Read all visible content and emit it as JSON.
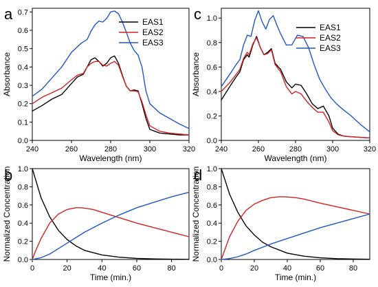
{
  "chart_data": [
    {
      "panel": "a",
      "type": "line",
      "xlabel": "Wavelength (nm)",
      "ylabel": "Absorbance",
      "xlim": [
        240,
        320
      ],
      "ylim": [
        0,
        0.72
      ],
      "xticks": [
        240,
        260,
        280,
        300,
        320
      ],
      "yticks": [
        0.0,
        0.1,
        0.2,
        0.3,
        0.4,
        0.5,
        0.6,
        0.7
      ],
      "ytick_labels": [
        "0.0",
        "0.1",
        "0.2",
        "0.3",
        "0.4",
        "0.5",
        "0.6",
        "0.7"
      ],
      "grid": false,
      "legend_position": "top-right",
      "series": [
        {
          "name": "EAS1",
          "color": "#000000",
          "x": [
            240,
            245,
            250,
            255,
            260,
            263,
            266,
            268,
            270,
            272,
            274,
            276,
            278,
            280,
            282,
            284,
            286,
            288,
            290,
            292,
            294,
            296,
            298,
            300,
            305,
            310,
            315,
            320
          ],
          "y": [
            0.16,
            0.19,
            0.225,
            0.25,
            0.31,
            0.345,
            0.36,
            0.4,
            0.44,
            0.45,
            0.43,
            0.405,
            0.42,
            0.45,
            0.46,
            0.42,
            0.355,
            0.295,
            0.27,
            0.275,
            0.27,
            0.2,
            0.12,
            0.06,
            0.04,
            0.035,
            0.03,
            0.03
          ]
        },
        {
          "name": "EAS2",
          "color": "#d42020",
          "x": [
            240,
            245,
            250,
            255,
            260,
            263,
            266,
            268,
            270,
            272,
            274,
            276,
            278,
            280,
            282,
            284,
            286,
            288,
            290,
            292,
            294,
            296,
            298,
            300,
            305,
            310,
            315,
            320
          ],
          "y": [
            0.2,
            0.235,
            0.26,
            0.285,
            0.33,
            0.355,
            0.365,
            0.4,
            0.42,
            0.43,
            0.43,
            0.41,
            0.405,
            0.42,
            0.43,
            0.41,
            0.35,
            0.295,
            0.27,
            0.27,
            0.265,
            0.21,
            0.14,
            0.08,
            0.05,
            0.04,
            0.035,
            0.03
          ]
        },
        {
          "name": "EAS3",
          "color": "#1f55c8",
          "x": [
            240,
            245,
            250,
            255,
            260,
            265,
            268,
            270,
            272,
            274,
            276,
            278,
            280,
            282,
            284,
            286,
            288,
            290,
            292,
            294,
            296,
            298,
            300,
            305,
            310,
            315,
            320
          ],
          "y": [
            0.24,
            0.28,
            0.34,
            0.4,
            0.48,
            0.53,
            0.55,
            0.595,
            0.63,
            0.65,
            0.645,
            0.665,
            0.7,
            0.705,
            0.69,
            0.645,
            0.59,
            0.53,
            0.49,
            0.465,
            0.4,
            0.27,
            0.2,
            0.15,
            0.12,
            0.09,
            0.065
          ]
        }
      ]
    },
    {
      "panel": "b",
      "type": "line",
      "xlabel": "Time (min.)",
      "ylabel": "Normalized Concentration",
      "xlim": [
        0,
        90
      ],
      "ylim": [
        0,
        1.0
      ],
      "xticks": [
        0,
        20,
        40,
        60,
        80
      ],
      "yticks": [
        0.0,
        0.2,
        0.4,
        0.6,
        0.8,
        1.0
      ],
      "ytick_labels": [
        "0.0",
        "0.2",
        "0.4",
        "0.6",
        "0.8",
        "1.0"
      ],
      "grid": false,
      "series": [
        {
          "color": "#000000",
          "x": [
            0,
            5,
            10,
            15,
            20,
            25,
            30,
            40,
            50,
            60,
            70,
            80,
            90
          ],
          "y": [
            1.0,
            0.68,
            0.47,
            0.32,
            0.22,
            0.15,
            0.1,
            0.05,
            0.025,
            0.012,
            0.006,
            0.003,
            0.0015
          ]
        },
        {
          "color": "#d42020",
          "x": [
            0,
            2,
            5,
            10,
            15,
            20,
            25,
            28,
            30,
            35,
            40,
            50,
            60,
            70,
            80,
            90
          ],
          "y": [
            0.0,
            0.1,
            0.23,
            0.4,
            0.5,
            0.55,
            0.57,
            0.57,
            0.565,
            0.55,
            0.52,
            0.46,
            0.4,
            0.35,
            0.3,
            0.25
          ]
        },
        {
          "color": "#1f55c8",
          "x": [
            0,
            5,
            10,
            15,
            20,
            30,
            40,
            50,
            60,
            70,
            80,
            90
          ],
          "y": [
            0.0,
            0.02,
            0.06,
            0.12,
            0.18,
            0.3,
            0.4,
            0.49,
            0.57,
            0.63,
            0.69,
            0.74
          ]
        }
      ]
    },
    {
      "panel": "c",
      "type": "line",
      "xlabel": "Wavelength (nm)",
      "ylabel": "Absorbance",
      "xlim": [
        240,
        320
      ],
      "ylim": [
        0,
        1.08
      ],
      "xticks": [
        240,
        260,
        280,
        300,
        320
      ],
      "yticks": [
        0.0,
        0.2,
        0.4,
        0.6,
        0.8,
        1.0
      ],
      "ytick_labels": [
        "0.0",
        "0.2",
        "0.4",
        "0.6",
        "0.8",
        "1.0"
      ],
      "grid": false,
      "legend_position": "top-right",
      "series": [
        {
          "name": "EAS1",
          "color": "#000000",
          "x": [
            240,
            245,
            248,
            250,
            252,
            254,
            255,
            257,
            259,
            261,
            263,
            265,
            267,
            269,
            272,
            275,
            278,
            280,
            283,
            286,
            289,
            292,
            295,
            298,
            300,
            303,
            306,
            310,
            315,
            320
          ],
          "y": [
            0.33,
            0.45,
            0.52,
            0.56,
            0.66,
            0.7,
            0.68,
            0.78,
            0.85,
            0.76,
            0.7,
            0.72,
            0.75,
            0.63,
            0.58,
            0.48,
            0.43,
            0.46,
            0.45,
            0.38,
            0.3,
            0.26,
            0.28,
            0.2,
            0.1,
            0.05,
            0.035,
            0.03,
            0.025,
            0.02
          ]
        },
        {
          "name": "EAS2",
          "color": "#d42020",
          "x": [
            240,
            245,
            248,
            250,
            252,
            254,
            255,
            257,
            259,
            261,
            263,
            265,
            267,
            269,
            272,
            275,
            278,
            280,
            283,
            286,
            289,
            292,
            295,
            298,
            300,
            303,
            306,
            310,
            315,
            320
          ],
          "y": [
            0.4,
            0.48,
            0.54,
            0.58,
            0.67,
            0.72,
            0.7,
            0.79,
            0.84,
            0.76,
            0.7,
            0.71,
            0.74,
            0.62,
            0.56,
            0.44,
            0.38,
            0.4,
            0.38,
            0.32,
            0.27,
            0.23,
            0.23,
            0.15,
            0.08,
            0.045,
            0.035,
            0.03,
            0.025,
            0.02
          ]
        },
        {
          "name": "EAS3",
          "color": "#1f55c8",
          "x": [
            240,
            245,
            248,
            250,
            252,
            254,
            256,
            258,
            260,
            262,
            264,
            266,
            268,
            270,
            272,
            275,
            278,
            281,
            284,
            287,
            290,
            293,
            296,
            299,
            302,
            305,
            310,
            315,
            320
          ],
          "y": [
            0.44,
            0.55,
            0.62,
            0.66,
            0.78,
            0.86,
            0.85,
            0.98,
            1.06,
            0.97,
            0.91,
            0.99,
            1.02,
            0.94,
            0.87,
            0.78,
            0.78,
            0.86,
            0.85,
            0.76,
            0.62,
            0.5,
            0.42,
            0.35,
            0.3,
            0.26,
            0.2,
            0.13,
            0.07
          ]
        }
      ]
    },
    {
      "panel": "d",
      "type": "line",
      "xlabel": "Time (min.)",
      "ylabel": "Normalized Concentration",
      "xlim": [
        0,
        90
      ],
      "ylim": [
        0,
        1.0
      ],
      "xticks": [
        0,
        20,
        40,
        60,
        80
      ],
      "yticks": [
        0.0,
        0.2,
        0.4,
        0.6,
        0.8,
        1.0
      ],
      "ytick_labels": [
        "0.0",
        "0.2",
        "0.4",
        "0.6",
        "0.8",
        "1.0"
      ],
      "grid": false,
      "series": [
        {
          "color": "#000000",
          "x": [
            0,
            5,
            10,
            15,
            20,
            25,
            30,
            40,
            50,
            60,
            70,
            80,
            90
          ],
          "y": [
            1.0,
            0.72,
            0.52,
            0.37,
            0.27,
            0.19,
            0.14,
            0.07,
            0.036,
            0.018,
            0.009,
            0.005,
            0.0025
          ]
        },
        {
          "color": "#d42020",
          "x": [
            0,
            2,
            5,
            10,
            15,
            20,
            25,
            30,
            35,
            38,
            40,
            45,
            50,
            60,
            70,
            80,
            90
          ],
          "y": [
            0.0,
            0.1,
            0.25,
            0.42,
            0.54,
            0.61,
            0.65,
            0.68,
            0.69,
            0.69,
            0.688,
            0.68,
            0.665,
            0.62,
            0.58,
            0.54,
            0.5
          ]
        },
        {
          "color": "#1f55c8",
          "x": [
            0,
            5,
            10,
            15,
            20,
            30,
            40,
            50,
            60,
            70,
            80,
            90
          ],
          "y": [
            0.0,
            0.01,
            0.03,
            0.06,
            0.1,
            0.17,
            0.23,
            0.29,
            0.35,
            0.4,
            0.45,
            0.5
          ]
        }
      ]
    }
  ]
}
